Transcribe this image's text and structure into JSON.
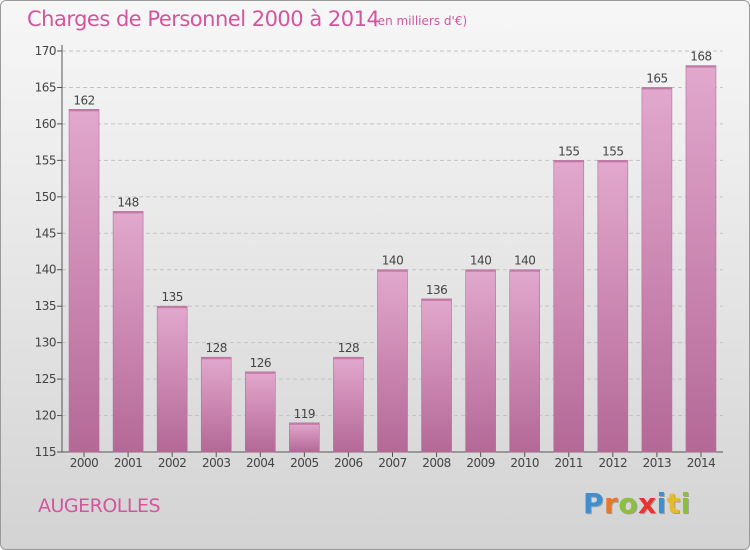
{
  "header": {
    "title": "Charges de Personnel 2000 à 2014",
    "subtitle": "(en milliers d'€)"
  },
  "footer": {
    "commune": "AUGEROLLES",
    "logo_letters": [
      "P",
      "r",
      "o",
      "x",
      "i",
      "t",
      "i"
    ],
    "logo_colors": [
      "#3d8fd1",
      "#e8772e",
      "#8dbf3c",
      "#e8332e",
      "#3d8fd1",
      "#e8b92e",
      "#8dbf3c"
    ]
  },
  "chart_data": {
    "type": "bar",
    "categories": [
      "2000",
      "2001",
      "2002",
      "2003",
      "2004",
      "2005",
      "2006",
      "2007",
      "2008",
      "2009",
      "2010",
      "2011",
      "2012",
      "2013",
      "2014"
    ],
    "values": [
      162,
      148,
      135,
      128,
      126,
      119,
      128,
      140,
      136,
      140,
      140,
      155,
      155,
      165,
      168
    ],
    "ylim": [
      115,
      170
    ],
    "yticks": [
      115,
      120,
      125,
      130,
      135,
      140,
      145,
      150,
      155,
      160,
      165,
      170
    ],
    "grid": true,
    "bar_color_top": "#e2a8cd",
    "bar_color_bottom": "#b46896"
  }
}
